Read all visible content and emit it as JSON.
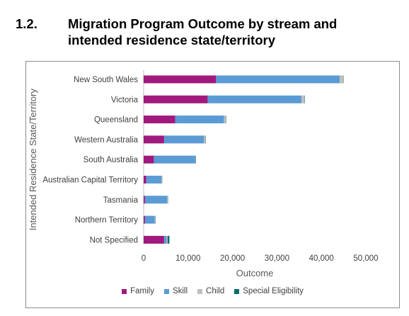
{
  "heading": {
    "number": "1.2.",
    "title": "Migration Program Outcome by stream and intended residence state/territory"
  },
  "chart_data": {
    "type": "bar",
    "orientation": "horizontal",
    "stacked": true,
    "categories": [
      "New South Wales",
      "Victoria",
      "Queensland",
      "Western Australia",
      "South Australia",
      "Australian Capital Territory",
      "Tasmania",
      "Northern Territory",
      "Not Specified"
    ],
    "series": [
      {
        "name": "Family",
        "color": "#a0197d",
        "values": [
          16300,
          14400,
          7100,
          4600,
          2300,
          600,
          300,
          300,
          4600
        ]
      },
      {
        "name": "Skill",
        "color": "#5b9bd5",
        "values": [
          27800,
          21100,
          11000,
          9000,
          9300,
          3400,
          5000,
          2200,
          600
        ]
      },
      {
        "name": "Child",
        "color": "#bfbfbf",
        "values": [
          800,
          700,
          400,
          300,
          100,
          100,
          100,
          100,
          200
        ]
      },
      {
        "name": "Special Eligibility",
        "color": "#0e6a6a",
        "values": [
          50,
          40,
          20,
          20,
          10,
          5,
          5,
          5,
          400
        ]
      }
    ],
    "xlabel": "Outcome",
    "ylabel": "Intended Residence State/Territory",
    "xlim": [
      0,
      50000
    ],
    "xticks": [
      0,
      10000,
      20000,
      30000,
      40000,
      50000
    ],
    "xtick_labels": [
      "0",
      "10,000",
      "20,000",
      "30,000",
      "40,000",
      "50,000"
    ],
    "grid": false,
    "legend_position": "bottom"
  }
}
